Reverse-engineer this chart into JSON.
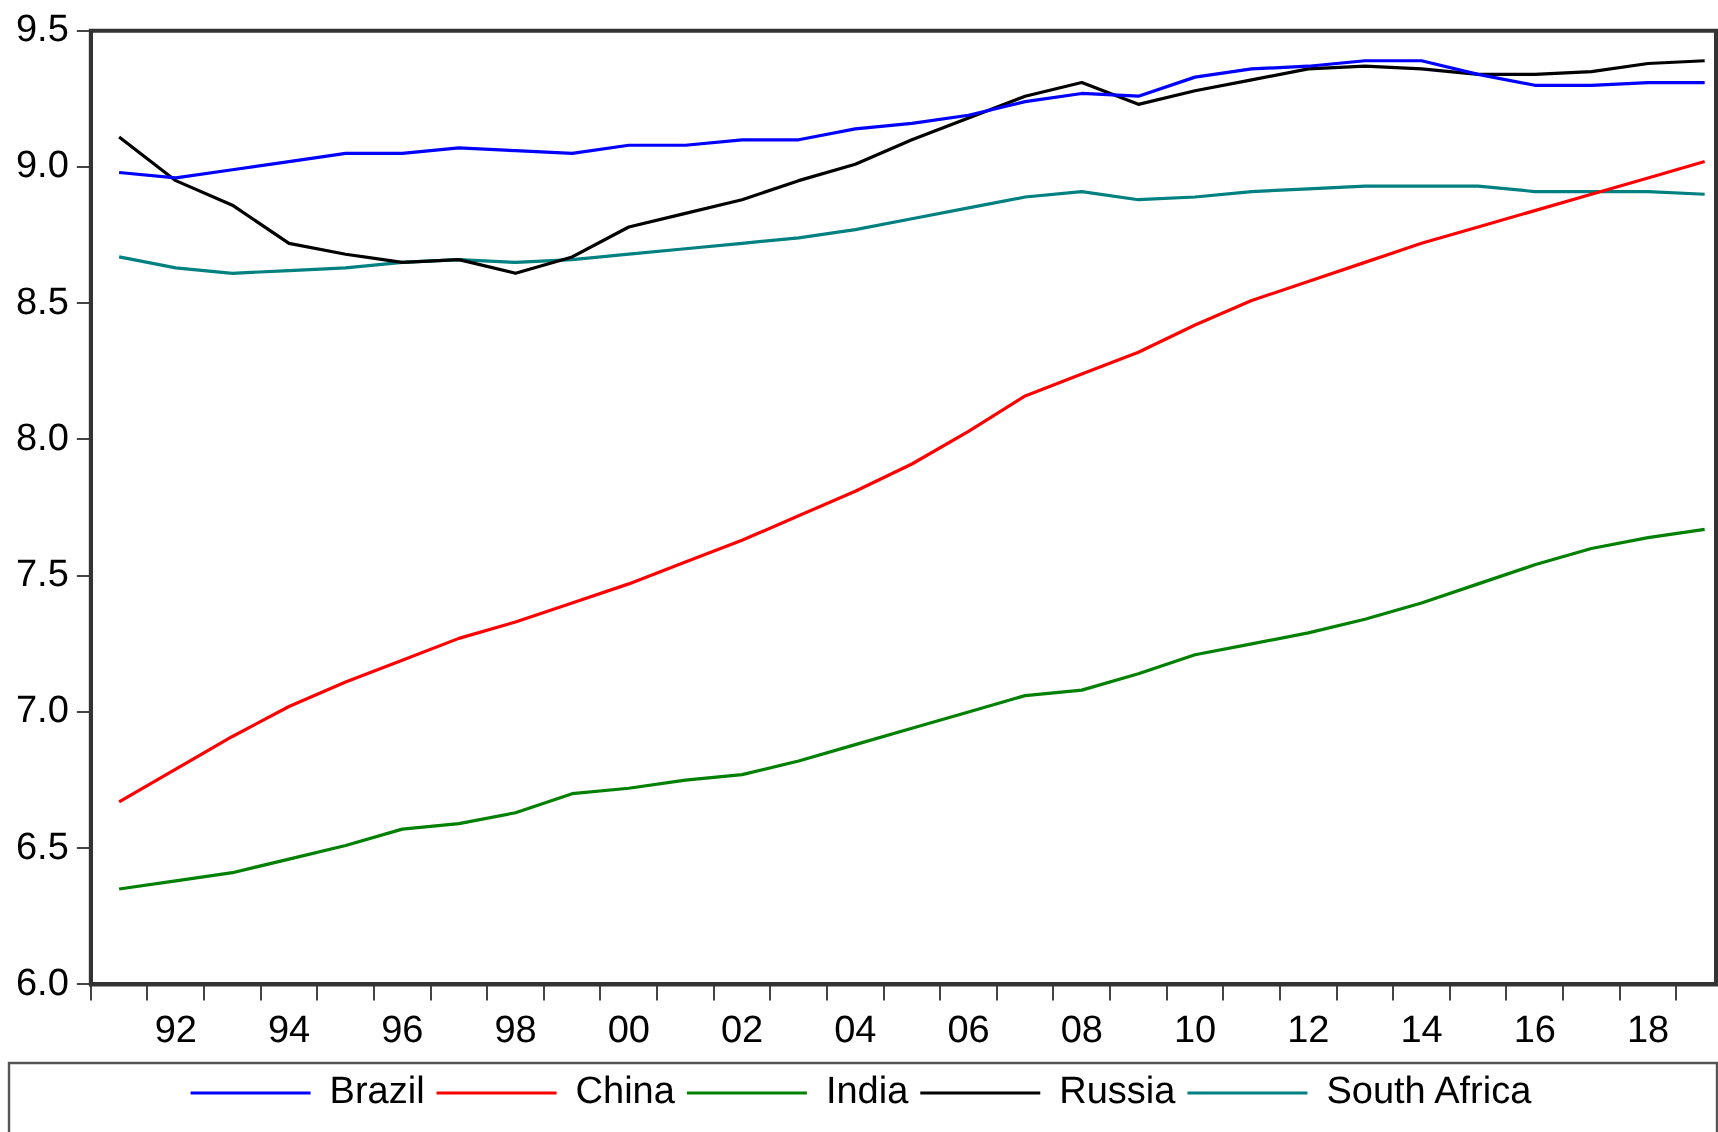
{
  "chart_data": {
    "type": "line",
    "x": [
      1991,
      1992,
      1993,
      1994,
      1995,
      1996,
      1997,
      1998,
      1999,
      2000,
      2001,
      2002,
      2003,
      2004,
      2005,
      2006,
      2007,
      2008,
      2009,
      2010,
      2011,
      2012,
      2013,
      2014,
      2015,
      2016,
      2017,
      2018,
      2019
    ],
    "series": [
      {
        "name": "Brazil",
        "color": "#0000ff",
        "values": [
          8.98,
          8.96,
          8.99,
          9.02,
          9.05,
          9.05,
          9.07,
          9.06,
          9.05,
          9.08,
          9.08,
          9.1,
          9.1,
          9.14,
          9.16,
          9.19,
          9.24,
          9.27,
          9.26,
          9.33,
          9.36,
          9.37,
          9.39,
          9.39,
          9.34,
          9.3,
          9.3,
          9.31,
          9.31
        ]
      },
      {
        "name": "China",
        "color": "#ff0000",
        "values": [
          6.67,
          6.79,
          6.91,
          7.02,
          7.11,
          7.19,
          7.27,
          7.33,
          7.4,
          7.47,
          7.55,
          7.63,
          7.72,
          7.81,
          7.91,
          8.03,
          8.16,
          8.24,
          8.32,
          8.42,
          8.51,
          8.58,
          8.65,
          8.72,
          8.78,
          8.84,
          8.9,
          8.96,
          9.02
        ]
      },
      {
        "name": "India",
        "color": "#008000",
        "values": [
          6.35,
          6.38,
          6.41,
          6.46,
          6.51,
          6.57,
          6.59,
          6.63,
          6.7,
          6.72,
          6.75,
          6.77,
          6.82,
          6.88,
          6.94,
          7.0,
          7.06,
          7.08,
          7.14,
          7.21,
          7.25,
          7.29,
          7.34,
          7.4,
          7.47,
          7.54,
          7.6,
          7.64,
          7.67
        ]
      },
      {
        "name": "Russia",
        "color": "#000000",
        "values": [
          9.11,
          8.95,
          8.86,
          8.72,
          8.68,
          8.65,
          8.66,
          8.61,
          8.67,
          8.78,
          8.83,
          8.88,
          8.95,
          9.01,
          9.1,
          9.18,
          9.26,
          9.31,
          9.23,
          9.28,
          9.32,
          9.36,
          9.37,
          9.36,
          9.34,
          9.34,
          9.35,
          9.38,
          9.39
        ]
      },
      {
        "name": "South Africa",
        "color": "#008080",
        "values": [
          8.67,
          8.63,
          8.61,
          8.62,
          8.63,
          8.65,
          8.66,
          8.65,
          8.66,
          8.68,
          8.7,
          8.72,
          8.74,
          8.77,
          8.81,
          8.85,
          8.89,
          8.91,
          8.88,
          8.89,
          8.91,
          8.92,
          8.93,
          8.93,
          8.93,
          8.91,
          8.91,
          8.91,
          8.9
        ]
      }
    ],
    "xlim": [
      1990.5,
      2019.2
    ],
    "xticks": [
      {
        "value": 1990.5,
        "label": null
      },
      {
        "value": 1991.5,
        "label": null
      },
      {
        "value": 1992,
        "label": "92"
      },
      {
        "value": 1992.5,
        "label": null
      },
      {
        "value": 1993.5,
        "label": null
      },
      {
        "value": 1994,
        "label": "94"
      },
      {
        "value": 1994.5,
        "label": null
      },
      {
        "value": 1995.5,
        "label": null
      },
      {
        "value": 1996,
        "label": "96"
      },
      {
        "value": 1996.5,
        "label": null
      },
      {
        "value": 1997.5,
        "label": null
      },
      {
        "value": 1998,
        "label": "98"
      },
      {
        "value": 1998.5,
        "label": null
      },
      {
        "value": 1999.5,
        "label": null
      },
      {
        "value": 2000,
        "label": "00"
      },
      {
        "value": 2000.5,
        "label": null
      },
      {
        "value": 2001.5,
        "label": null
      },
      {
        "value": 2002,
        "label": "02"
      },
      {
        "value": 2002.5,
        "label": null
      },
      {
        "value": 2003.5,
        "label": null
      },
      {
        "value": 2004,
        "label": "04"
      },
      {
        "value": 2004.5,
        "label": null
      },
      {
        "value": 2005.5,
        "label": null
      },
      {
        "value": 2006,
        "label": "06"
      },
      {
        "value": 2006.5,
        "label": null
      },
      {
        "value": 2007.5,
        "label": null
      },
      {
        "value": 2008,
        "label": "08"
      },
      {
        "value": 2008.5,
        "label": null
      },
      {
        "value": 2009.5,
        "label": null
      },
      {
        "value": 2010,
        "label": "10"
      },
      {
        "value": 2010.5,
        "label": null
      },
      {
        "value": 2011.5,
        "label": null
      },
      {
        "value": 2012,
        "label": "12"
      },
      {
        "value": 2012.5,
        "label": null
      },
      {
        "value": 2013.5,
        "label": null
      },
      {
        "value": 2014,
        "label": "14"
      },
      {
        "value": 2014.5,
        "label": null
      },
      {
        "value": 2015.5,
        "label": null
      },
      {
        "value": 2016,
        "label": "16"
      },
      {
        "value": 2016.5,
        "label": null
      },
      {
        "value": 2017.5,
        "label": null
      },
      {
        "value": 2018,
        "label": "18"
      },
      {
        "value": 2018.5,
        "label": null
      }
    ],
    "ylim": [
      6.0,
      9.5
    ],
    "yticks": [
      {
        "value": 6.0,
        "label": "6.0"
      },
      {
        "value": 6.5,
        "label": "6.5"
      },
      {
        "value": 7.0,
        "label": "7.0"
      },
      {
        "value": 7.5,
        "label": "7.5"
      },
      {
        "value": 8.0,
        "label": "8.0"
      },
      {
        "value": 8.5,
        "label": "8.5"
      },
      {
        "value": 9.0,
        "label": "9.0"
      },
      {
        "value": 9.5,
        "label": "9.5"
      }
    ],
    "grid": false,
    "legend": "bottom",
    "marker": "none",
    "line_style": "solid"
  }
}
